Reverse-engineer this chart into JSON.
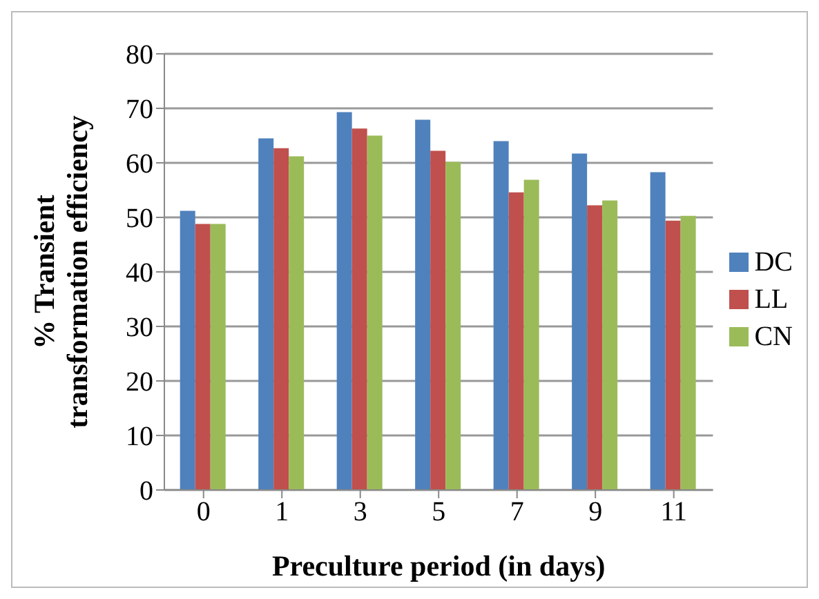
{
  "chart_data": {
    "type": "bar",
    "xlabel": "Preculture period (in days)",
    "ylabel": "% Transient transformation efficiency",
    "categories": [
      "0",
      "1",
      "3",
      "5",
      "7",
      "9",
      "11"
    ],
    "series": [
      {
        "name": "DC",
        "color": "#4f81bd",
        "values": [
          51.2,
          64.5,
          69.3,
          67.9,
          64.0,
          61.7,
          58.3
        ]
      },
      {
        "name": "LL",
        "color": "#c0504d",
        "values": [
          48.8,
          62.7,
          66.3,
          62.2,
          54.6,
          52.2,
          49.4
        ]
      },
      {
        "name": "CN",
        "color": "#9bbb59",
        "values": [
          48.8,
          61.2,
          65.0,
          60.2,
          56.9,
          53.1,
          50.3
        ]
      }
    ],
    "ylim": [
      0,
      80
    ],
    "yticks": [
      0,
      10,
      20,
      30,
      40,
      50,
      60,
      70,
      80
    ],
    "grid": "y",
    "legend": "right"
  }
}
